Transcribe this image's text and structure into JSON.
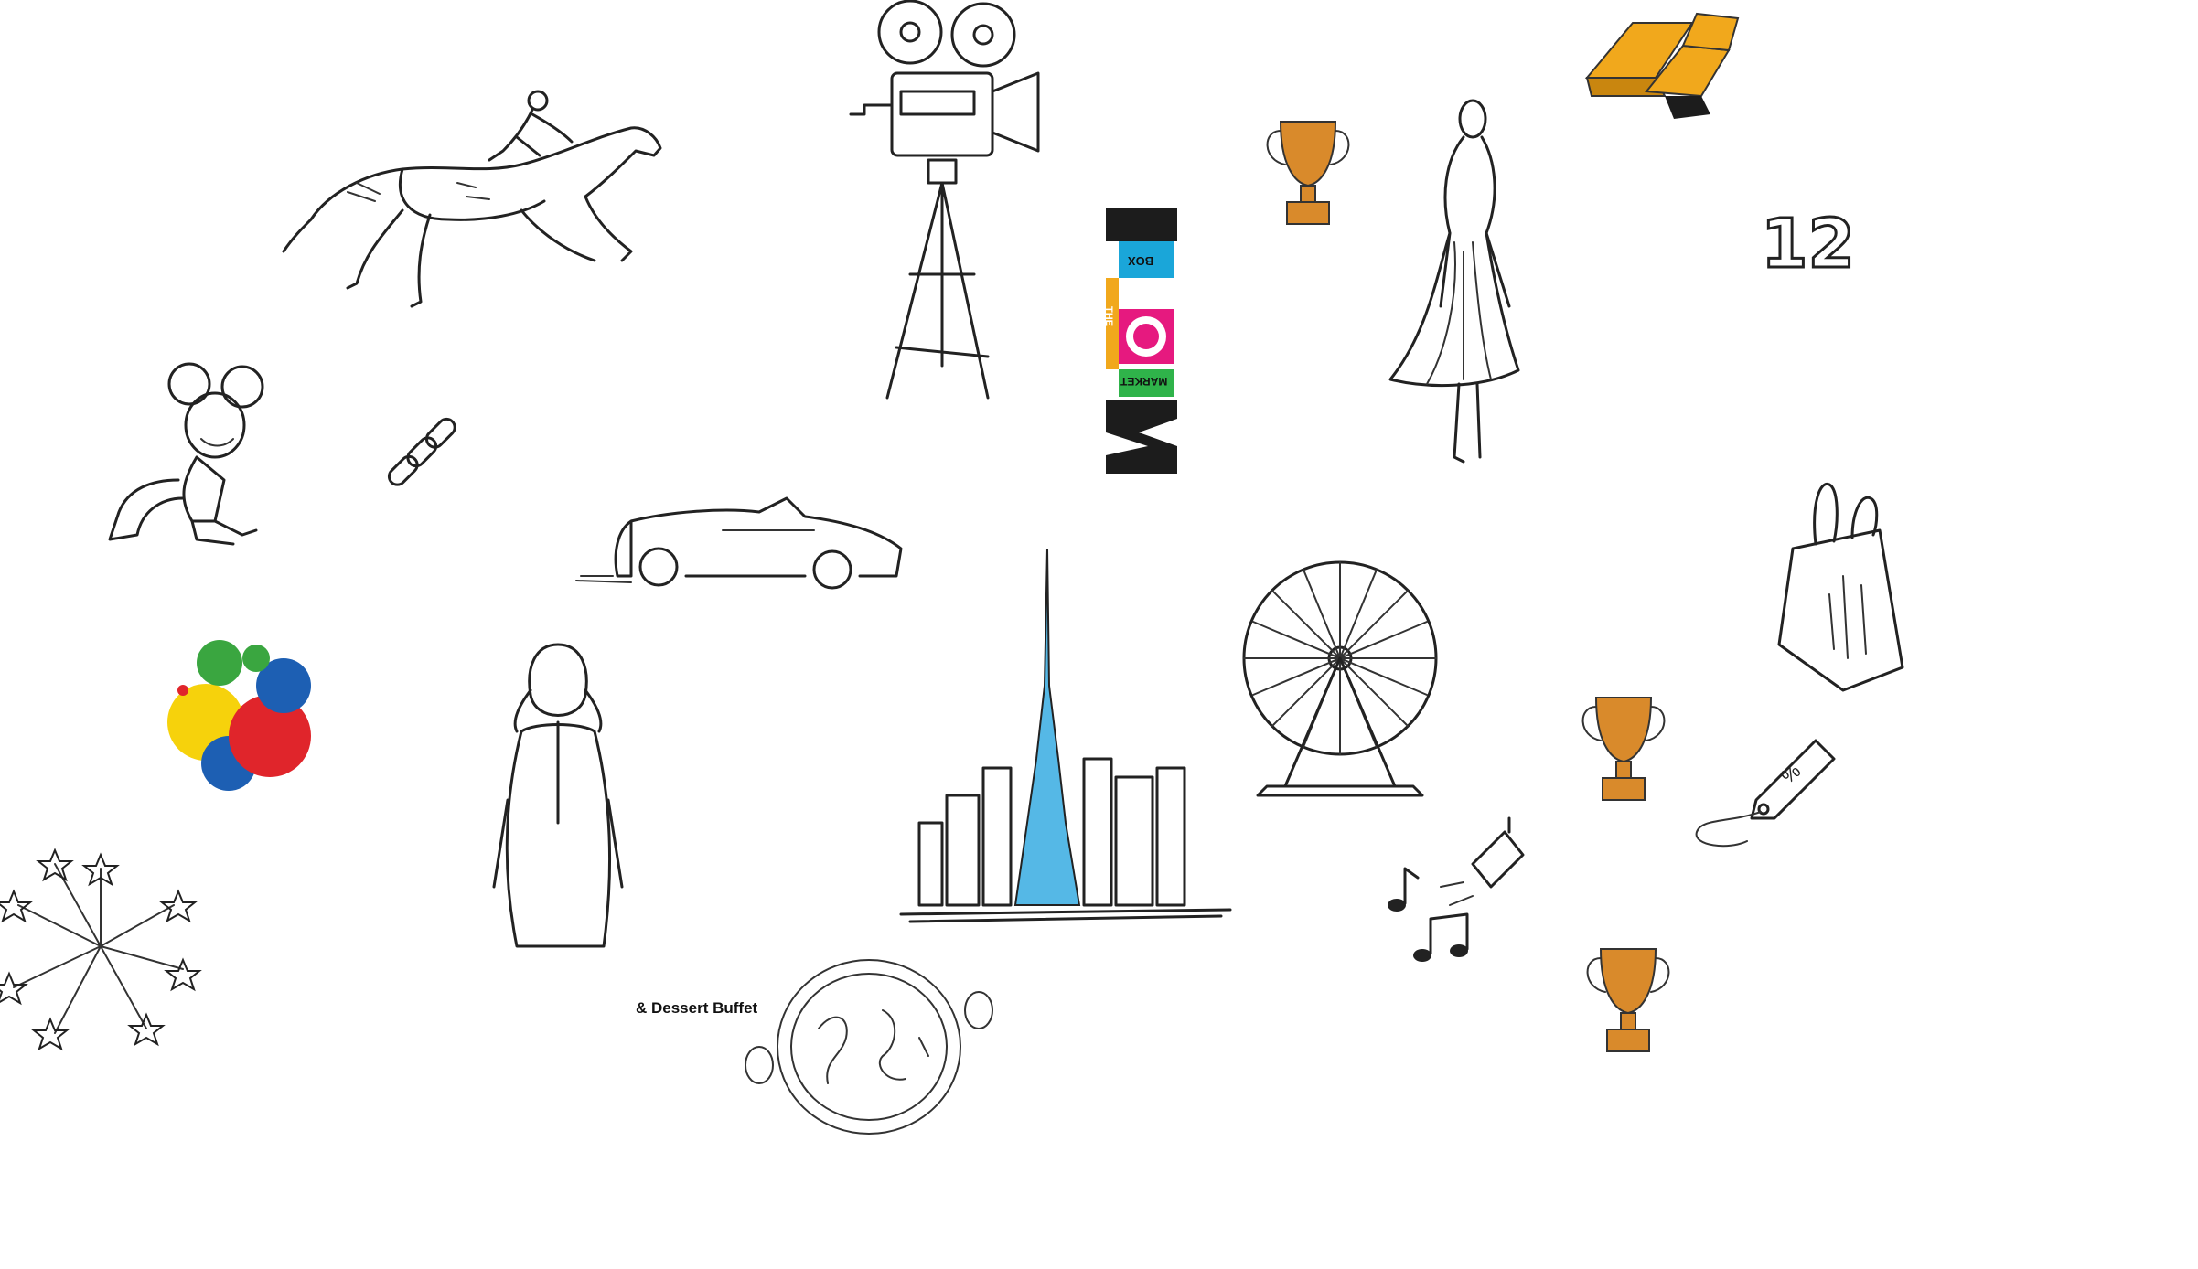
{
  "captions": {
    "dessert": "& Dessert Buffet",
    "mob_box": "BOX",
    "mob_the": "THE",
    "mob_market": "MARKET",
    "mob_letters": "MOB",
    "number_twelve": "12"
  },
  "colors": {
    "ink": "#222222",
    "trophy": "#d98a2b",
    "gold": "#f1a81c",
    "burj": "#55b8e6",
    "mob_cyan": "#1aa6d9",
    "mob_pink": "#e6197f",
    "mob_green": "#2fb34a",
    "splash_red": "#e0252b",
    "splash_yellow": "#f6d20c",
    "splash_blue": "#1d5fb3",
    "splash_green": "#3aa640"
  },
  "icons": [
    "horse-racing-icon",
    "film-camera-icon",
    "mob-market-logo",
    "trophy-icon",
    "fashion-model-icon",
    "gold-bars-icon",
    "number-12-icon",
    "mickey-mouse-icon",
    "chain-icon",
    "convertible-car-icon",
    "shopping-bag-icon",
    "color-splash-icon",
    "emirati-man-icon",
    "burj-khalifa-skyline-icon",
    "ferris-wheel-icon",
    "music-spotlight-icon",
    "price-tag-icon",
    "fireworks-icon",
    "dessert-plate-icon"
  ]
}
